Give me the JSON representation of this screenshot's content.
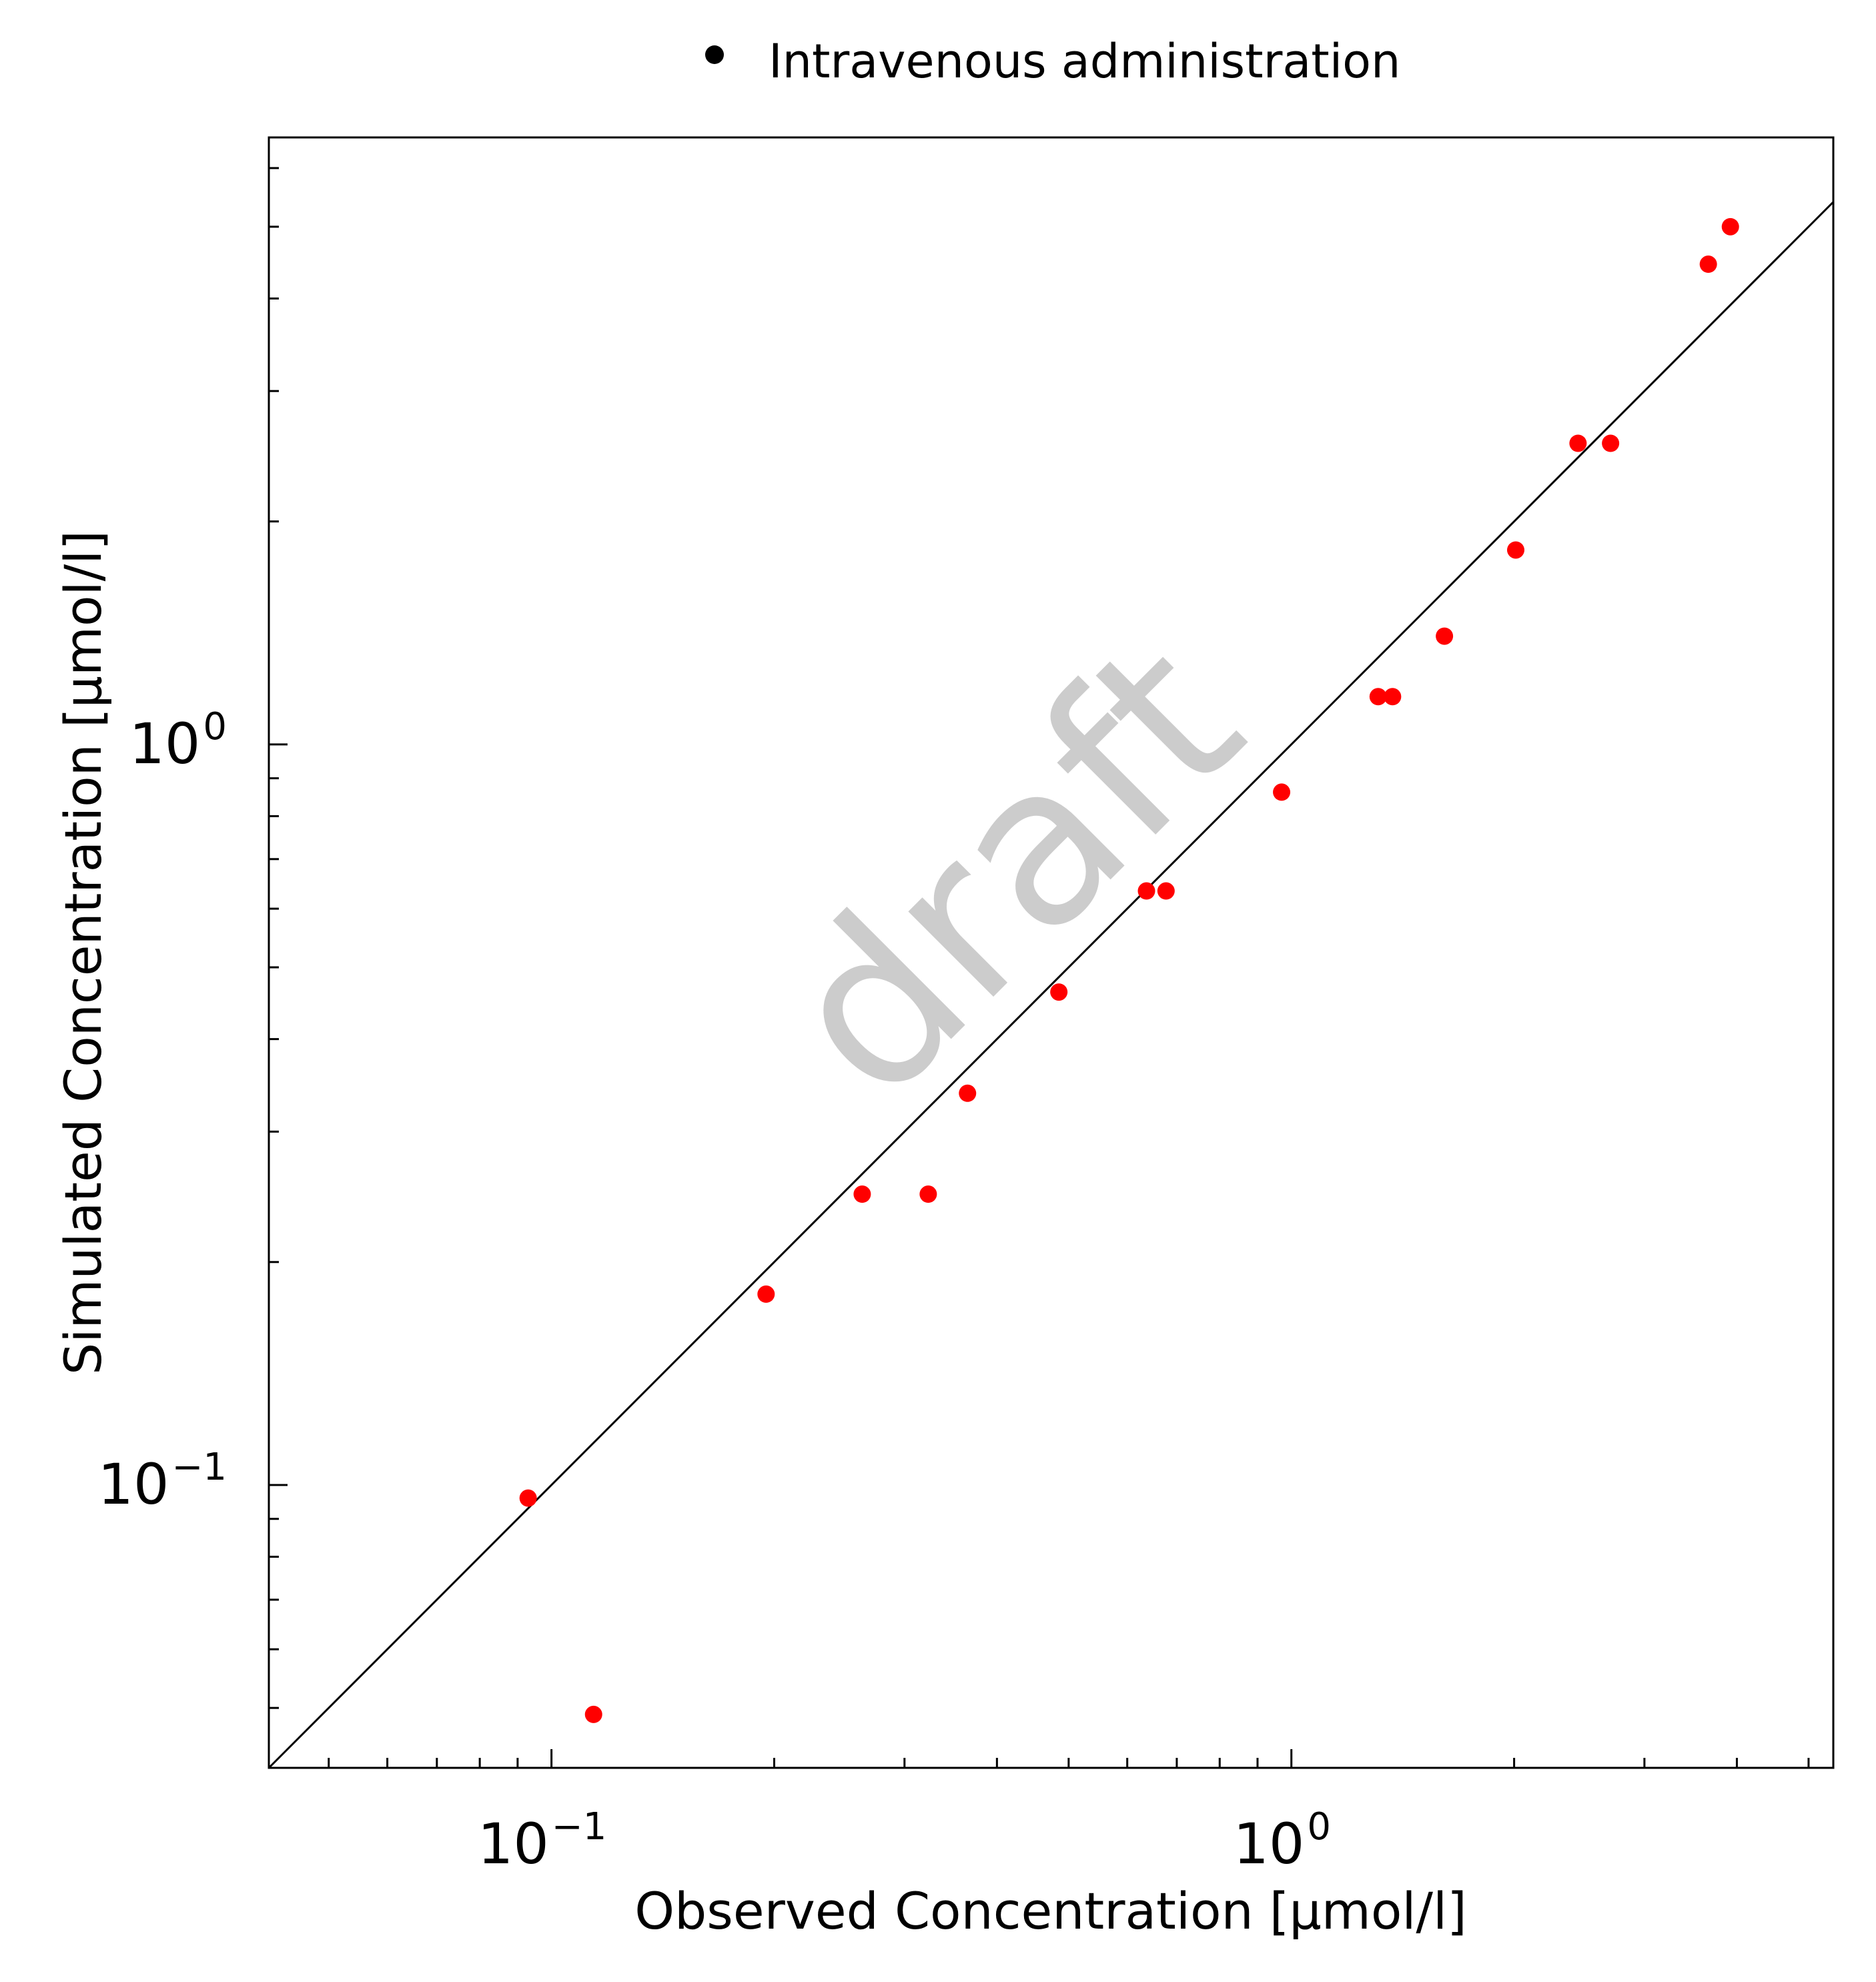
{
  "chart_data": {
    "type": "scatter",
    "title": "",
    "legend": {
      "position": "top-center",
      "entries": [
        {
          "label": "Intravenous administration",
          "marker_color": "#000000"
        }
      ]
    },
    "xlabel": "Observed Concentration [µmol/l]",
    "ylabel": "Simulated Concentration [µmol/l]",
    "xscale": "log",
    "yscale": "log",
    "xlim": [
      0.0415,
      5.4
    ],
    "ylim": [
      0.0415,
      6.6
    ],
    "xticks": [
      {
        "base": "10",
        "exp": "−1",
        "value": 0.1
      },
      {
        "base": "10",
        "exp": "0",
        "value": 1
      }
    ],
    "yticks": [
      {
        "base": "10",
        "exp": "−1",
        "value": 0.1
      },
      {
        "base": "10",
        "exp": "0",
        "value": 1
      }
    ],
    "identity_line": true,
    "grid": false,
    "watermark": "draft",
    "series": [
      {
        "name": "Intravenous administration",
        "color": "#ff0000",
        "points": [
          {
            "x": 0.093,
            "y": 0.096
          },
          {
            "x": 0.114,
            "y": 0.049
          },
          {
            "x": 0.195,
            "y": 0.181
          },
          {
            "x": 0.263,
            "y": 0.247
          },
          {
            "x": 0.323,
            "y": 0.247
          },
          {
            "x": 0.365,
            "y": 0.338
          },
          {
            "x": 0.485,
            "y": 0.463
          },
          {
            "x": 0.637,
            "y": 0.634
          },
          {
            "x": 0.677,
            "y": 0.634
          },
          {
            "x": 0.97,
            "y": 0.862
          },
          {
            "x": 1.31,
            "y": 1.16
          },
          {
            "x": 1.37,
            "y": 1.16
          },
          {
            "x": 1.61,
            "y": 1.4
          },
          {
            "x": 2.01,
            "y": 1.83
          },
          {
            "x": 2.44,
            "y": 2.55
          },
          {
            "x": 2.7,
            "y": 2.55
          },
          {
            "x": 3.66,
            "y": 4.45
          },
          {
            "x": 3.92,
            "y": 5.0
          }
        ]
      }
    ]
  }
}
